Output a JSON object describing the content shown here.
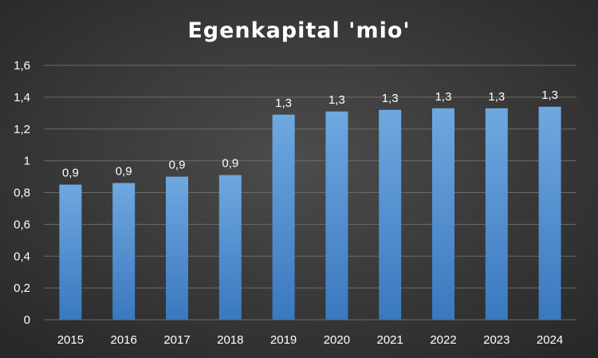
{
  "chart_data": {
    "type": "bar",
    "title": "Egenkapital 'mio'",
    "xlabel": "",
    "ylabel": "",
    "categories": [
      "2015",
      "2016",
      "2017",
      "2018",
      "2019",
      "2020",
      "2021",
      "2022",
      "2023",
      "2024"
    ],
    "values": [
      0.85,
      0.86,
      0.9,
      0.91,
      1.29,
      1.31,
      1.32,
      1.33,
      1.33,
      1.34
    ],
    "data_labels": [
      "0,9",
      "0,9",
      "0,9",
      "0,9",
      "1,3",
      "1,3",
      "1,3",
      "1,3",
      "1,3",
      "1,3"
    ],
    "ylim": [
      0,
      1.6
    ],
    "yticks": [
      0,
      0.2,
      0.4,
      0.6,
      0.8,
      1,
      1.2,
      1.4,
      1.6
    ],
    "ytick_labels": [
      "0",
      "0,2",
      "0,4",
      "0,6",
      "0,8",
      "1",
      "1,2",
      "1,4",
      "1,6"
    ],
    "grid": true,
    "legend": "none",
    "colors": {
      "background_outer": "#2b2b2b",
      "background_inner": "#4a4a4a",
      "bar_top": "#6fa8e0",
      "bar_bottom": "#3a78bf",
      "text": "#ffffff",
      "grid": "#6b6b6b"
    }
  }
}
